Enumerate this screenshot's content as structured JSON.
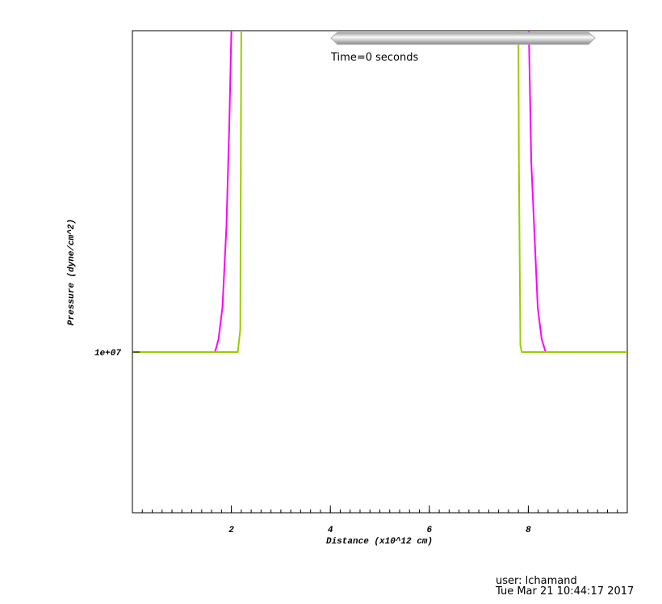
{
  "chart_data": {
    "type": "line",
    "x_label": "Distance (x10^12 cm)",
    "y_label": "Pressure (dyne/cm^2)",
    "time_label": "Time=0 seconds",
    "user_label": "user: lchamand",
    "date_label": "Tue Mar 21 10:44:17 2017",
    "xlim": [
      0,
      10
    ],
    "xticks": [
      2,
      4,
      6,
      8
    ],
    "ylim": [
      5000000,
      20000000
    ],
    "yticks": [
      {
        "value": 10000000,
        "label": "1e+07"
      }
    ],
    "series": [
      {
        "color": "#ff00ff",
        "x": [
          0,
          1.67,
          1.74,
          1.82,
          1.9,
          1.96,
          2.0,
          5,
          8.01,
          8.06,
          8.19,
          8.27,
          8.35,
          10
        ],
        "values": [
          10000000,
          10000000,
          10400000,
          11400000,
          13900000,
          17200000,
          20000000,
          null,
          20000000,
          15900000,
          11400000,
          10400000,
          10000000,
          10000000
        ]
      },
      {
        "color": "#99cc00",
        "x": [
          0,
          2.13,
          2.18,
          2.2,
          5,
          7.8,
          7.81,
          7.84,
          7.87,
          10
        ],
        "values": [
          10000000,
          10000000,
          10700000,
          20000000,
          null,
          20000000,
          15900000,
          10200000,
          10000000,
          10000000
        ]
      }
    ]
  }
}
